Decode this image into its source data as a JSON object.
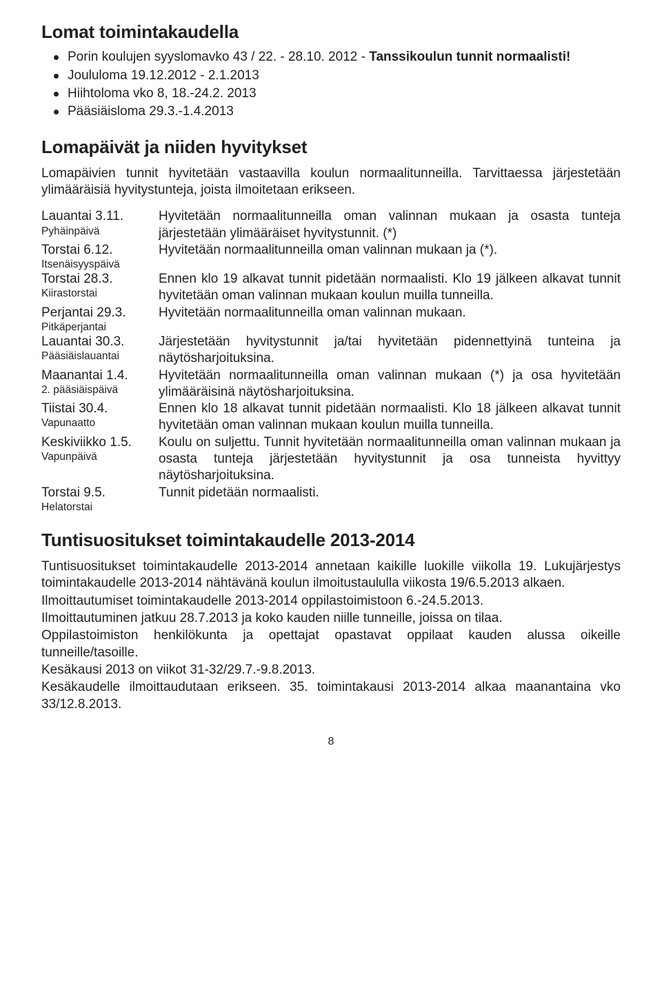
{
  "colors": {
    "text": "#231f20",
    "background": "#ffffff"
  },
  "fontsize": {
    "body": 19,
    "heading": 26,
    "sub": 15.5,
    "pagenum": 16
  },
  "section1": {
    "heading": "Lomat toimintakaudella",
    "items": [
      {
        "plain": "Porin koulujen syyslomavko 43 / 22. - 28.10. 2012 - ",
        "bold": "Tanssikoulun tunnit normaalisti!"
      },
      {
        "plain": "Joululoma 19.12.2012 - 2.1.2013",
        "bold": ""
      },
      {
        "plain": "Hiihtoloma vko 8, 18.-24.2. 2013",
        "bold": ""
      },
      {
        "plain": "Pääsiäisloma 29.3.-1.4.2013",
        "bold": ""
      }
    ]
  },
  "section2": {
    "heading": "Lomapäivät ja niiden hyvitykset",
    "intro": "Lomapäivien tunnit hyvitetään vastaavilla koulun normaalitunneilla. Tarvittaessa järjestetään ylimääräisiä hyvitystunteja, joista ilmoitetaan erikseen.",
    "rows": [
      {
        "date": "Lauantai 3.11.",
        "sub": "Pyhäinpäivä",
        "desc": "Hyvitetään normaalitunneilla oman valinnan mukaan ja osasta tunteja järjestetään ylimääräiset hyvitystunnit. (*)"
      },
      {
        "date": "Torstai 6.12.",
        "sub": "Itsenäisyyspäivä",
        "desc": "Hyvitetään normaalitunneilla oman valinnan mukaan ja (*)."
      },
      {
        "date": "Torstai 28.3.",
        "sub": "Kiirastorstai",
        "desc": "Ennen klo 19 alkavat tunnit pidetään normaalisti. Klo 19 jälkeen alkavat tunnit hyvitetään oman valinnan mukaan koulun muilla tunneilla."
      },
      {
        "date": "Perjantai 29.3.",
        "sub": "Pitkäperjantai",
        "desc": "Hyvitetään normaalitunneilla oman valinnan mukaan."
      },
      {
        "date": "Lauantai 30.3.",
        "sub": "Pääsiäislauantai",
        "desc": "Järjestetään hyvitystunnit ja/tai hyvitetään pidennettyinä tunteina ja näytösharjoituksina."
      },
      {
        "date": "Maanantai 1.4.",
        "sub": "2. pääsiäispäivä",
        "desc": "Hyvitetään normaalitunneilla oman valinnan mukaan (*) ja osa hyvitetään ylimääräisinä näytösharjoituksina."
      },
      {
        "date": "Tiistai 30.4.",
        "sub": "Vapunaatto",
        "desc": "Ennen klo 18 alkavat tunnit pidetään normaalisti. Klo 18 jälkeen alkavat tunnit hyvitetään oman valinnan mukaan koulun muilla tunneilla."
      },
      {
        "date": "Keskiviikko 1.5.",
        "sub": "Vapunpäivä",
        "desc": "Koulu on suljettu. Tunnit hyvitetään normaalitunneilla oman valinnan mukaan ja osasta tunteja järjestetään hyvitystunnit ja osa tunneista hyvittyy näytösharjoituksina."
      },
      {
        "date": "Torstai 9.5.",
        "sub": "Helatorstai",
        "desc": "Tunnit pidetään normaalisti."
      }
    ]
  },
  "section3": {
    "heading": "Tuntisuositukset toimintakaudelle 2013-2014",
    "paras": [
      "Tuntisuositukset toimintakaudelle 2013-2014 annetaan kaikille luokille viikolla 19. Lukujärjestys toimintakaudelle 2013-2014 nähtävänä koulun ilmoitustaululla viikosta 19/6.5.2013 alkaen.",
      "Ilmoittautumiset toimintakaudelle 2013-2014 oppilastoimistoon 6.-24.5.2013.",
      "Ilmoittautuminen jatkuu 28.7.2013 ja koko kauden niille tunneille, joissa on tilaa.",
      "Oppilastoimiston henkilökunta ja opettajat opastavat oppilaat kauden alussa oikeille tunneille/tasoille.",
      "Kesäkausi 2013 on viikot 31-32/29.7.-9.8.2013.",
      "Kesäkaudelle ilmoittaudutaan erikseen. 35. toimintakausi 2013-2014 alkaa maanantaina vko 33/12.8.2013."
    ]
  },
  "page_number": "8"
}
